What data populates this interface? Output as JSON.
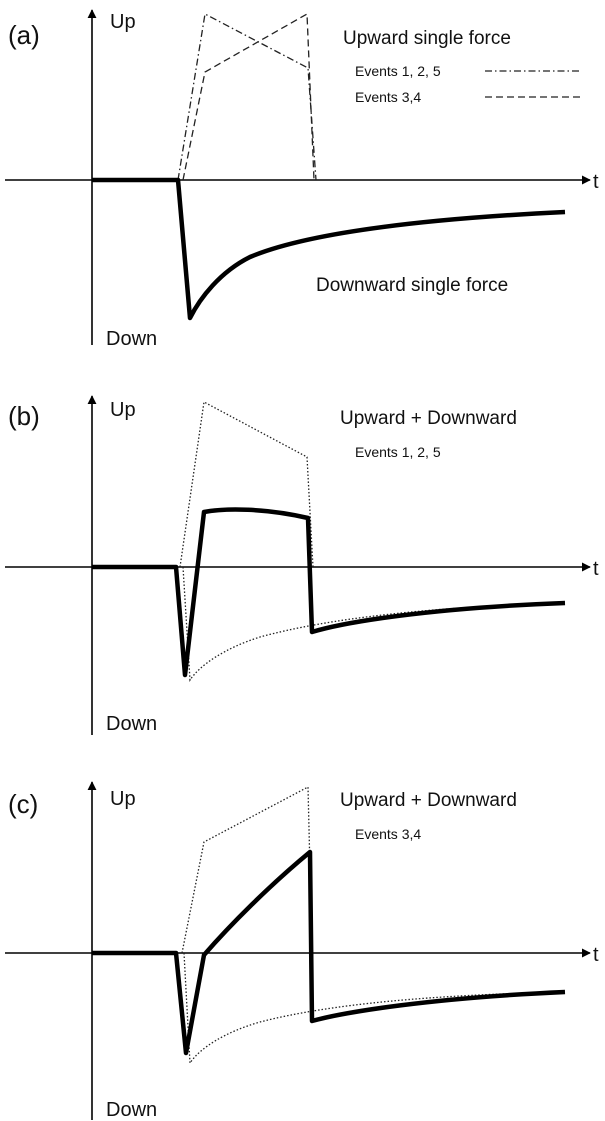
{
  "panels": [
    {
      "label": "(a)",
      "up": "Up",
      "down": "Down",
      "t": "t",
      "title": "Upward single force",
      "legend": [
        "Events 1, 2, 5",
        "Events 3,4"
      ],
      "note": "Downward single force"
    },
    {
      "label": "(b)",
      "up": "Up",
      "down": "Down",
      "t": "t",
      "title": "Upward + Downward",
      "legend": [
        "Events 1, 2, 5"
      ]
    },
    {
      "label": "(c)",
      "up": "Up",
      "down": "Down",
      "t": "t",
      "title": "Upward + Downward",
      "legend": [
        "Events 3,4"
      ]
    }
  ]
}
